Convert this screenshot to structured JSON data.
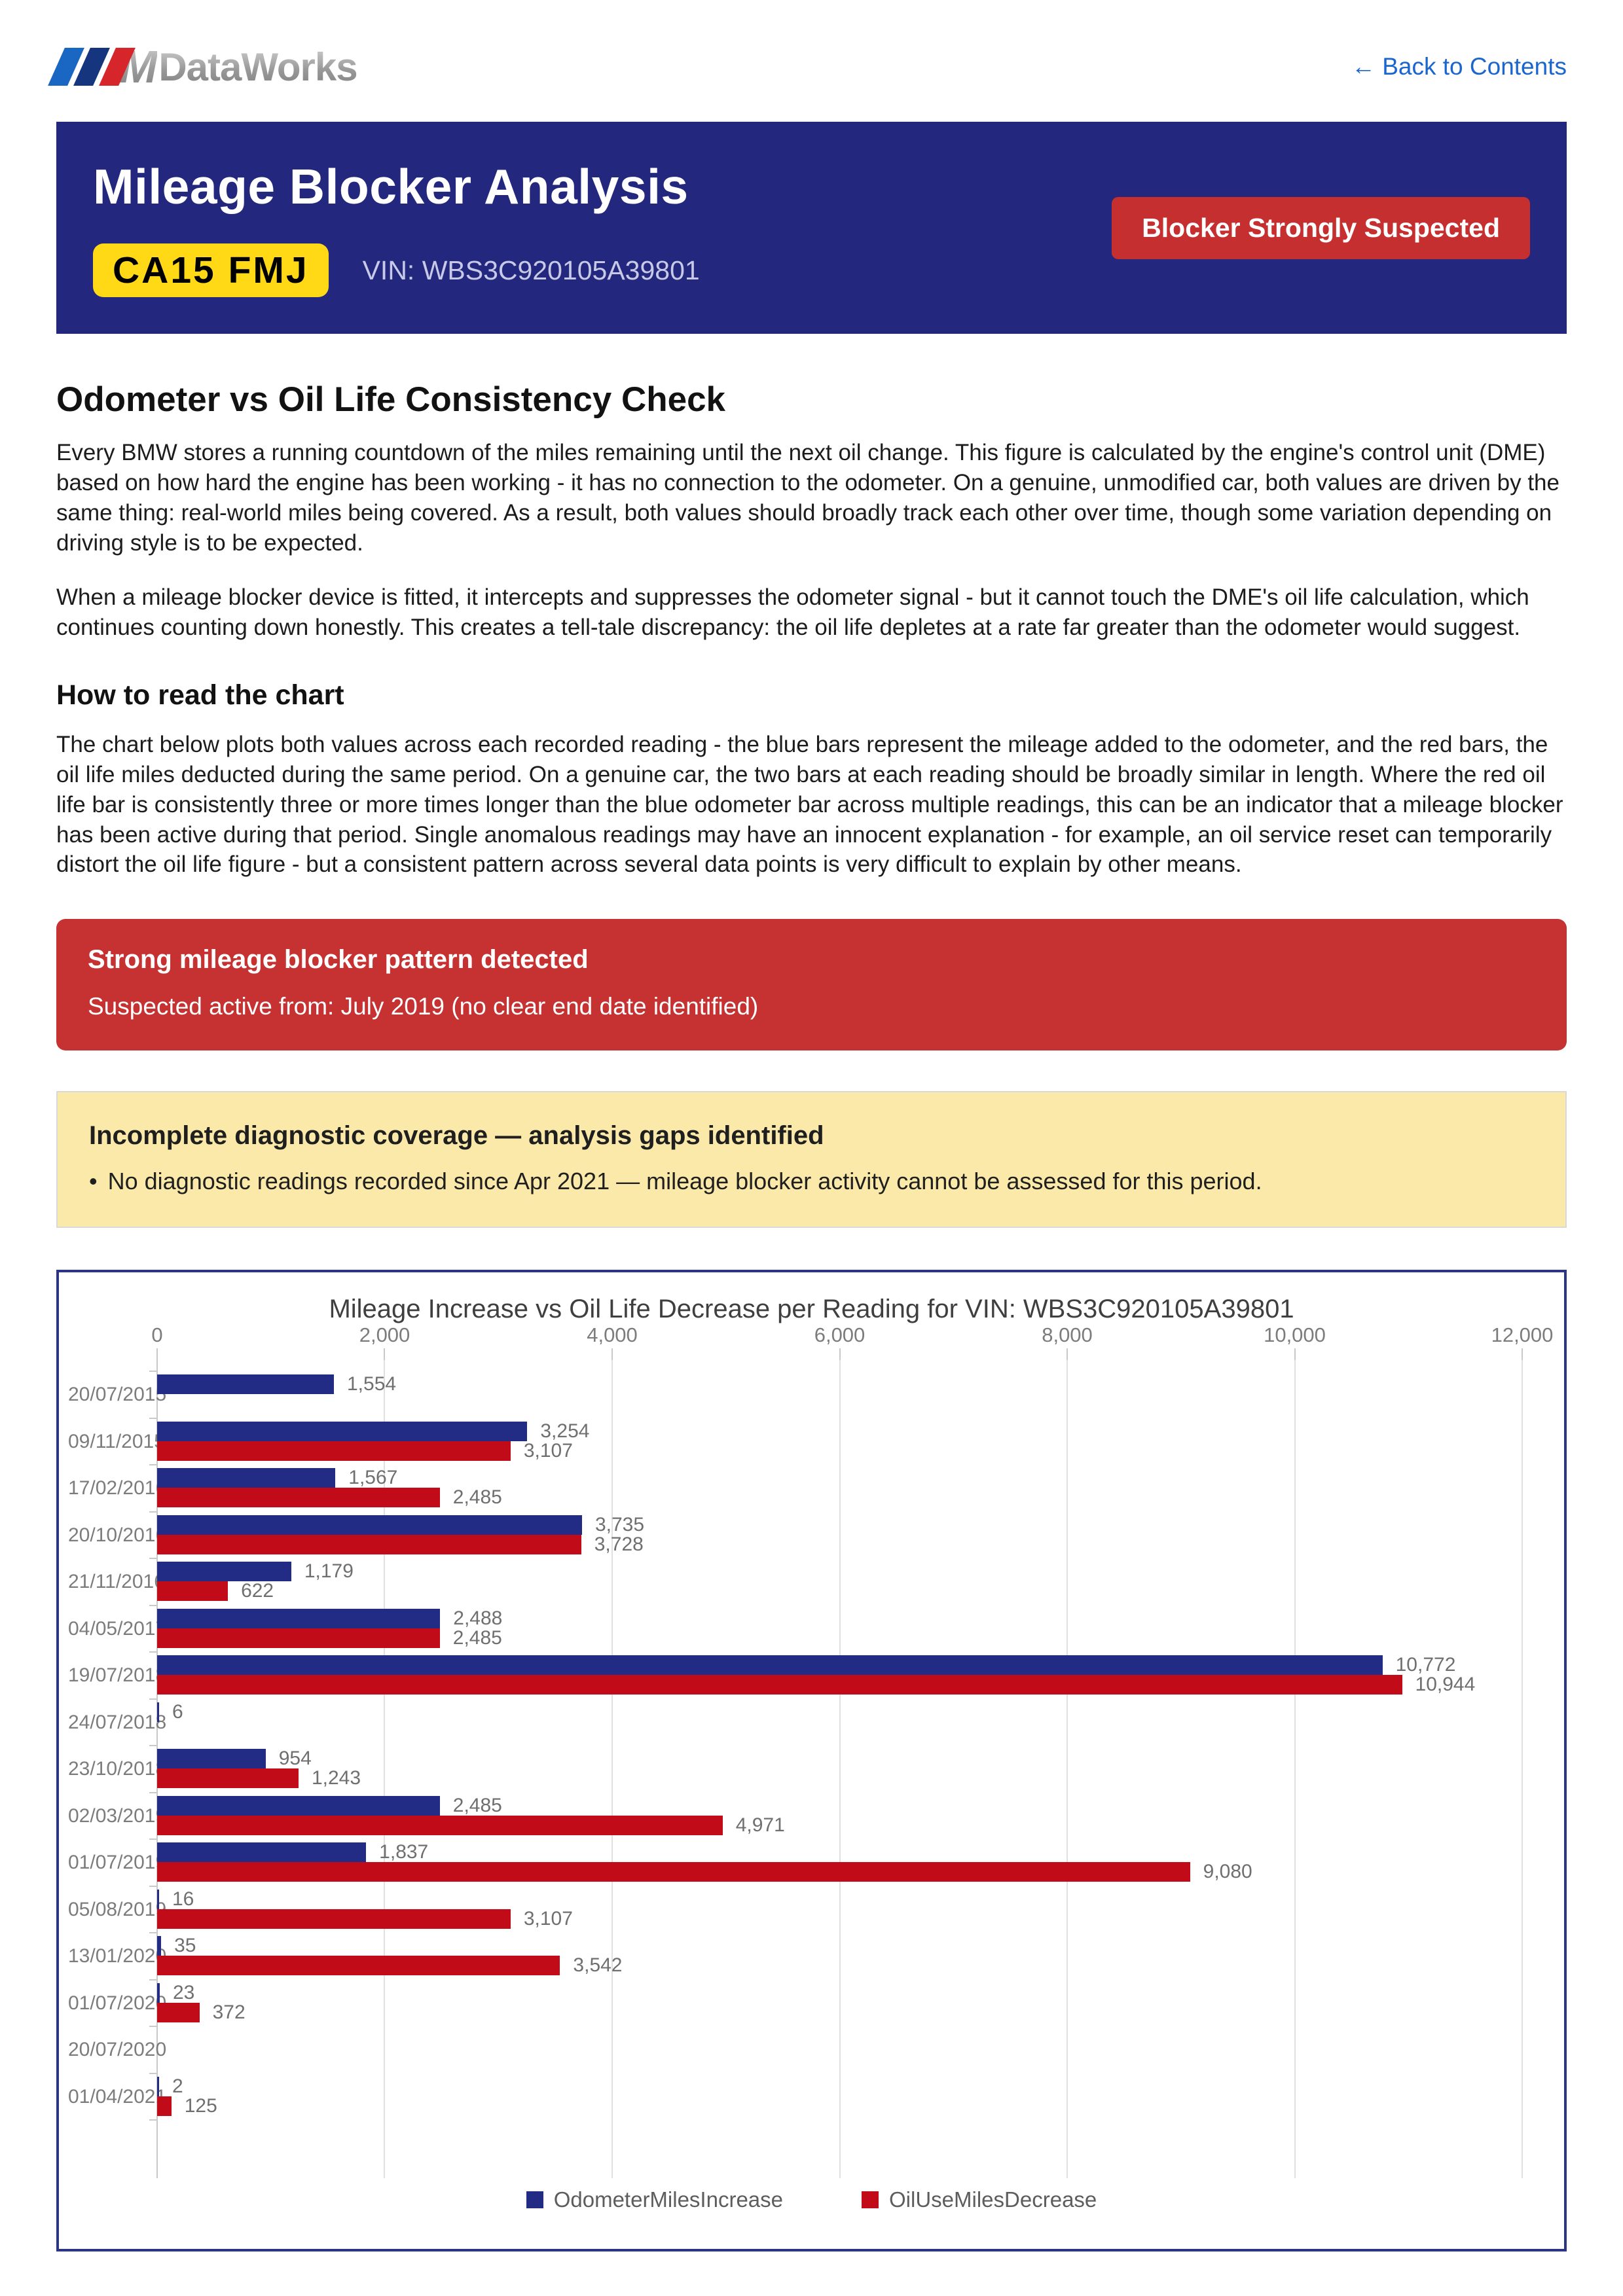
{
  "header": {
    "brand_m": "M",
    "brand_name": "DataWorks",
    "back_link": "← Back to Contents"
  },
  "banner": {
    "title": "Mileage Blocker Analysis",
    "plate": "CA15 FMJ",
    "vin": "VIN: WBS3C920105A39801",
    "badge": "Blocker Strongly Suspected"
  },
  "consistency_section": {
    "heading": "Odometer vs Oil Life Consistency Check",
    "para1": "Every BMW stores a running countdown of the miles remaining until the next oil change. This figure is calculated by the engine's control unit (DME) based on how hard the engine has been working - it has no connection to the odometer. On a genuine, unmodified car, both values are driven by the same thing: real-world miles being covered. As a result, both values should broadly track each other over time, though some variation depending on driving style is to be expected.",
    "para2": "When a mileage blocker device is fitted, it intercepts and suppresses the odometer signal - but it cannot touch the DME's oil life calculation, which continues counting down honestly. This creates a tell-tale discrepancy: the oil life depletes at a rate far greater than the odometer would suggest."
  },
  "how_to_read": {
    "heading": "How to read the chart",
    "para": "The chart below plots both values across each recorded reading - the blue bars represent the mileage added to the odometer, and the red bars, the oil life miles deducted during the same period. On a genuine car, the two bars at each reading should be broadly similar in length. Where the red oil life bar is consistently three or more times longer than the blue odometer bar across multiple readings, this can be an indicator that a mileage blocker has been active during that period. Single anomalous readings may have an innocent explanation - for example, an oil service reset can temporarily distort the oil life figure - but a consistent pattern across several data points is very difficult to explain by other means."
  },
  "red_alert": {
    "title": "Strong mileage blocker pattern detected",
    "subtitle": "Suspected active from: July 2019 (no clear end date identified)"
  },
  "coverage_warning": {
    "title": "Incomplete diagnostic coverage — analysis gaps identified",
    "bullet_marker": "•",
    "bullet": "No diagnostic readings recorded since Apr 2021 — mileage blocker activity cannot be assessed for this period."
  },
  "chart_data": {
    "type": "bar",
    "orientation": "horizontal",
    "title": "Mileage Increase vs Oil Life Decrease per Reading for VIN: WBS3C920105A39801",
    "categories": [
      "20/07/2015",
      "09/11/2015",
      "17/02/2016",
      "20/10/2016",
      "21/11/2016",
      "04/05/2017",
      "19/07/2018",
      "24/07/2018",
      "23/10/2018",
      "02/03/2019",
      "01/07/2019",
      "05/08/2019",
      "13/01/2020",
      "01/07/2020",
      "20/07/2020",
      "01/04/2021"
    ],
    "series": [
      {
        "name": "OdometerMilesIncrease",
        "color": "#232c85",
        "values": [
          1554,
          3254,
          1567,
          3735,
          1179,
          2488,
          10772,
          6,
          954,
          2485,
          1837,
          16,
          35,
          23,
          null,
          2
        ]
      },
      {
        "name": "OilUseMilesDecrease",
        "color": "#c10b18",
        "values": [
          null,
          3107,
          2485,
          3728,
          622,
          2485,
          10944,
          null,
          1243,
          4971,
          9080,
          3107,
          3542,
          372,
          null,
          125
        ]
      }
    ],
    "xlim": [
      0,
      12000
    ],
    "x_ticks": [
      0,
      2000,
      4000,
      6000,
      8000,
      10000,
      12000
    ],
    "x_tick_labels": [
      "0",
      "2,000",
      "4,000",
      "6,000",
      "8,000",
      "10,000",
      "12,000"
    ],
    "grid": true,
    "legend_position": "bottom"
  }
}
